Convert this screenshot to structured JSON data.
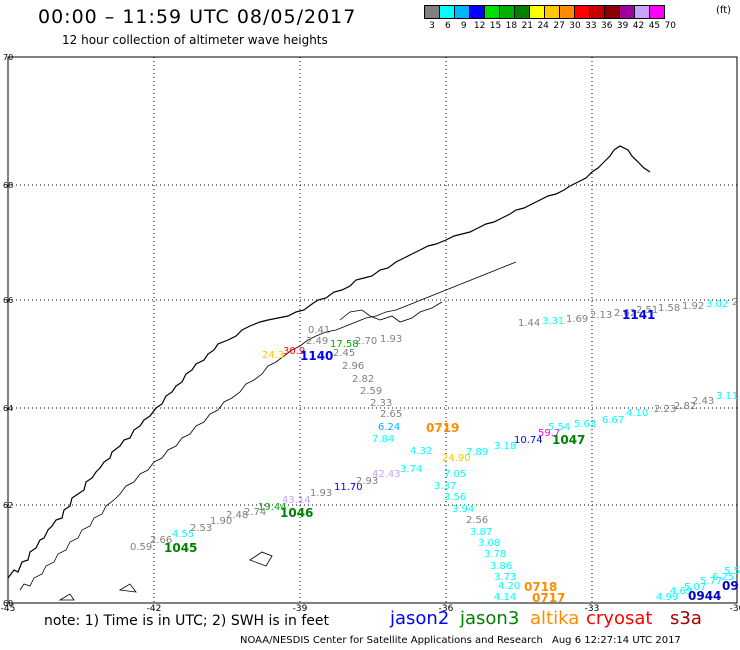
{
  "header": {
    "title": "00:00 – 11:59 UTC 08/05/2017",
    "subtitle": "12 hour collection of altimeter wave heights"
  },
  "color_scale": {
    "unit": "(ft)",
    "entries": [
      {
        "label": "3",
        "color": "#808080"
      },
      {
        "label": "6",
        "color": "#00ffff"
      },
      {
        "label": "9",
        "color": "#00b4ff"
      },
      {
        "label": "12",
        "color": "#0000ff"
      },
      {
        "label": "15",
        "color": "#00e000"
      },
      {
        "label": "18",
        "color": "#00b000"
      },
      {
        "label": "21",
        "color": "#008000"
      },
      {
        "label": "24",
        "color": "#ffff00"
      },
      {
        "label": "27",
        "color": "#ffc800"
      },
      {
        "label": "30",
        "color": "#ff8c00"
      },
      {
        "label": "33",
        "color": "#ff0000"
      },
      {
        "label": "36",
        "color": "#c80000"
      },
      {
        "label": "39",
        "color": "#8b0000"
      },
      {
        "label": "42",
        "color": "#a000a0"
      },
      {
        "label": "45",
        "color": "#c8a0ff"
      },
      {
        "label": "70",
        "color": "#ff00ff"
      }
    ]
  },
  "map": {
    "lat_labels": [
      "70",
      "68",
      "66",
      "64",
      "62",
      "60"
    ],
    "lon_labels": [
      "-45",
      "-42",
      "-39",
      "-36",
      "-33",
      "-30"
    ],
    "lat_range": [
      60,
      70
    ],
    "lon_range": [
      -45,
      -30
    ],
    "grid": "dotted",
    "coastline": "Greenland east coast"
  },
  "observations": [
    {
      "text": "0.41",
      "color": "#808080"
    },
    {
      "text": "2.49",
      "color": "#808080"
    },
    {
      "text": "1.93",
      "color": "#808080"
    },
    {
      "text": "2.70",
      "color": "#808080"
    },
    {
      "text": "17.58",
      "color": "#00b000"
    },
    {
      "text": "24.3",
      "color": "#ffc800"
    },
    {
      "text": "30.9",
      "color": "#ff0000"
    },
    {
      "text": "2.45",
      "color": "#808080"
    },
    {
      "text": "2.96",
      "color": "#808080"
    },
    {
      "text": "2.82",
      "color": "#808080"
    },
    {
      "text": "2.59",
      "color": "#808080"
    },
    {
      "text": "2.33",
      "color": "#808080"
    },
    {
      "text": "2.65",
      "color": "#808080"
    },
    {
      "text": "6.24",
      "color": "#00b4ff"
    },
    {
      "text": "7.84",
      "color": "#00ffff"
    },
    {
      "text": "4.32",
      "color": "#00ffff"
    },
    {
      "text": "3.74",
      "color": "#00ffff"
    },
    {
      "text": "7.05",
      "color": "#00ffff"
    },
    {
      "text": "3.37",
      "color": "#00ffff"
    },
    {
      "text": "3.56",
      "color": "#00ffff"
    },
    {
      "text": "3.94",
      "color": "#00ffff"
    },
    {
      "text": "2.56",
      "color": "#808080"
    },
    {
      "text": "3.87",
      "color": "#00ffff"
    },
    {
      "text": "3.08",
      "color": "#00ffff"
    },
    {
      "text": "3.78",
      "color": "#00ffff"
    },
    {
      "text": "3.86",
      "color": "#00ffff"
    },
    {
      "text": "3.73",
      "color": "#00ffff"
    },
    {
      "text": "4.20",
      "color": "#00ffff"
    },
    {
      "text": "4.14",
      "color": "#00ffff"
    },
    {
      "text": "24.90",
      "color": "#ffc800"
    },
    {
      "text": "7.89",
      "color": "#00ffff"
    },
    {
      "text": "3.18",
      "color": "#00ffff"
    },
    {
      "text": "10.74",
      "color": "#0000ff"
    },
    {
      "text": "59.7",
      "color": "#ff00ff"
    },
    {
      "text": "5.54",
      "color": "#00ffff"
    },
    {
      "text": "5.63",
      "color": "#00ffff"
    },
    {
      "text": "6.67",
      "color": "#00ffff"
    },
    {
      "text": "4.10",
      "color": "#00ffff"
    },
    {
      "text": "2.23",
      "color": "#808080"
    },
    {
      "text": "2.82",
      "color": "#808080"
    },
    {
      "text": "2.43",
      "color": "#808080"
    },
    {
      "text": "3.11",
      "color": "#00ffff"
    },
    {
      "text": "1.44",
      "color": "#808080"
    },
    {
      "text": "3.31",
      "color": "#00ffff"
    },
    {
      "text": "1.69",
      "color": "#808080"
    },
    {
      "text": "2.13",
      "color": "#808080"
    },
    {
      "text": "2.62",
      "color": "#808080"
    },
    {
      "text": "2.51",
      "color": "#808080"
    },
    {
      "text": "1.58",
      "color": "#808080"
    },
    {
      "text": "1.92",
      "color": "#808080"
    },
    {
      "text": "3.02",
      "color": "#00ffff"
    },
    {
      "text": "2",
      "color": "#808080"
    },
    {
      "text": "0.59",
      "color": "#808080"
    },
    {
      "text": "2.66",
      "color": "#808080"
    },
    {
      "text": "4.55",
      "color": "#00ffff"
    },
    {
      "text": "2.53",
      "color": "#808080"
    },
    {
      "text": "1.90",
      "color": "#808080"
    },
    {
      "text": "2.48",
      "color": "#808080"
    },
    {
      "text": "2.74",
      "color": "#808080"
    },
    {
      "text": "19.44",
      "color": "#00b000"
    },
    {
      "text": "43.14",
      "color": "#c8a0ff"
    },
    {
      "text": "1.93",
      "color": "#808080"
    },
    {
      "text": "11.70",
      "color": "#0000ff"
    },
    {
      "text": "2.93",
      "color": "#808080"
    },
    {
      "text": "42.43",
      "color": "#c8a0ff"
    },
    {
      "text": "4.99",
      "color": "#00ffff"
    },
    {
      "text": "4.69",
      "color": "#00ffff"
    },
    {
      "text": "5.07",
      "color": "#00ffff"
    },
    {
      "text": "5.77",
      "color": "#00ffff"
    },
    {
      "text": "6.25",
      "color": "#00ffff"
    },
    {
      "text": "5.53",
      "color": "#00ffff"
    }
  ],
  "pass_times": [
    {
      "text": "1140",
      "color": "#0000ff"
    },
    {
      "text": "0719",
      "color": "#ff8c00"
    },
    {
      "text": "1047",
      "color": "#008000"
    },
    {
      "text": "1141",
      "color": "#0000ff"
    },
    {
      "text": "1046",
      "color": "#008000"
    },
    {
      "text": "1045",
      "color": "#008000"
    },
    {
      "text": "0718",
      "color": "#ff8c00"
    },
    {
      "text": "0717",
      "color": "#ff8c00"
    },
    {
      "text": "0944",
      "color": "#0000c8"
    },
    {
      "text": "09",
      "color": "#0000c8"
    }
  ],
  "footer": {
    "note": "note: 1) Time is in UTC; 2) SWH is in feet",
    "satellites": [
      {
        "name": "jason2",
        "color": "#0000ff"
      },
      {
        "name": "jason3",
        "color": "#008000"
      },
      {
        "name": "altika",
        "color": "#ff8c00"
      },
      {
        "name": "cryosat",
        "color": "#ff0000"
      },
      {
        "name": "s3a",
        "color": "#a00000"
      }
    ],
    "credit": "NOAA/NESDIS Center for Satellite Applications and Research",
    "timestamp": "Aug  6 12:27:14 UTC 2017"
  }
}
